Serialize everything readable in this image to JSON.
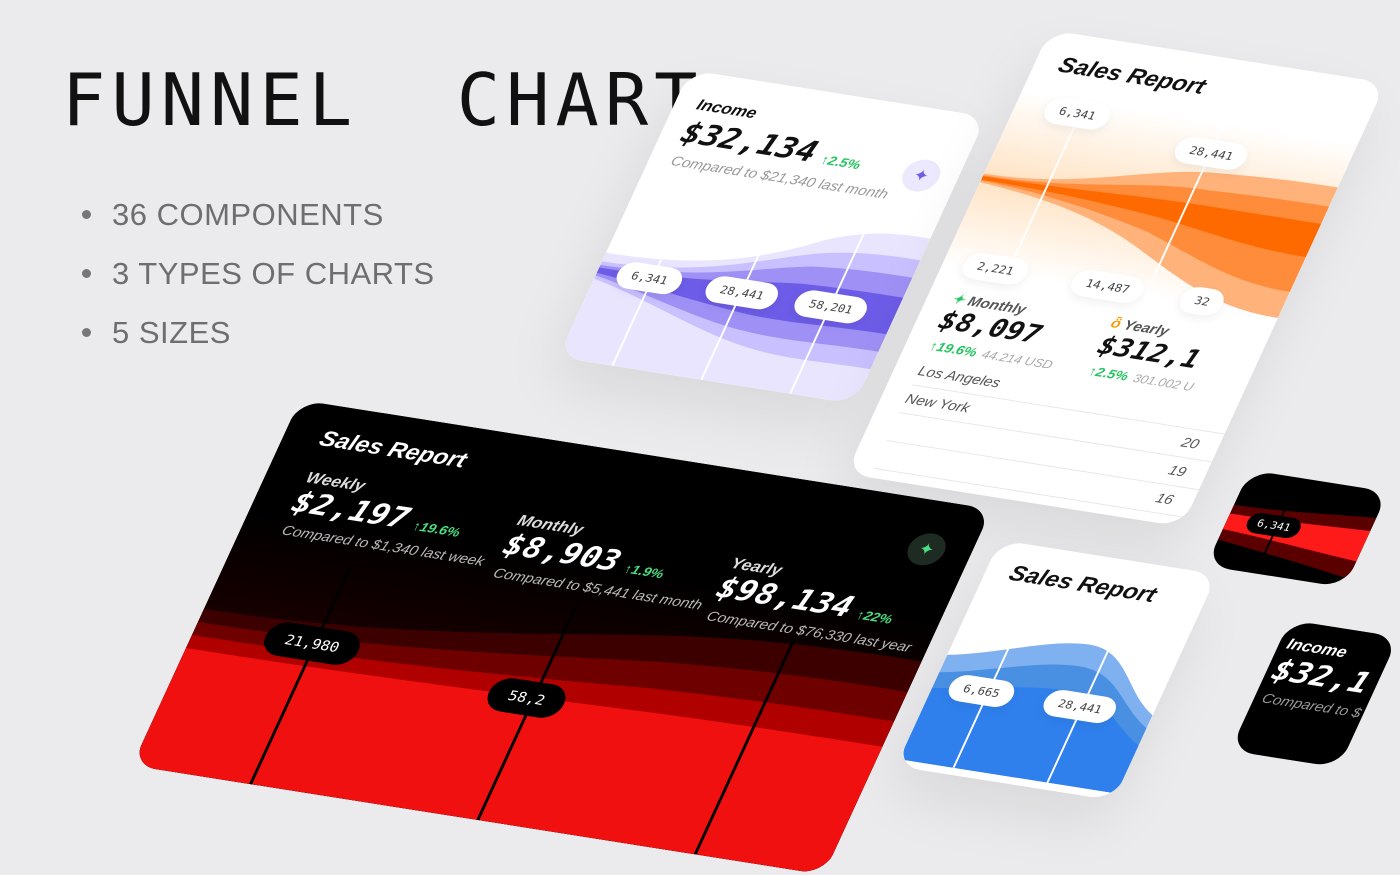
{
  "headline": "FUNNEL  CHART",
  "bullets": [
    "36 COMPONENTS",
    "3 TYPES OF CHARTS",
    "5 SIZES"
  ],
  "colors": {
    "purple": "#6c5ce7",
    "orange": "#ff6a00",
    "red": "#ff1a1a",
    "blue": "#2f80ed",
    "green": "#22c55e",
    "background": "#ebebed"
  },
  "income_card": {
    "title": "Income",
    "amount": "$32,134",
    "change": "↑2.5%",
    "compared": "Compared to $21,340 last month",
    "icon": "sparkle-icon",
    "labels": [
      "6,341",
      "28,441",
      "58,201"
    ]
  },
  "sales_card": {
    "title": "Sales Report",
    "labels": [
      "6,341",
      "28,441",
      "2,221",
      "14,487",
      "32"
    ],
    "monthly": {
      "label": "Monthly",
      "icon": "sparkle-icon",
      "amount": "$8,097",
      "change": "↑19.6%",
      "sub": "44.214 USD"
    },
    "yearly": {
      "label": "Yearly",
      "icon": "medal-icon",
      "amount": "$312,1",
      "change": "↑2.5%",
      "sub": "301.002 U"
    },
    "rows": [
      {
        "city": "Los Angeles",
        "value": ""
      },
      {
        "city": "New York",
        "value": "20"
      },
      {
        "city": "",
        "value": "19"
      },
      {
        "city": "",
        "value": "16"
      }
    ]
  },
  "dark_card": {
    "title": "Sales Report",
    "icon": "sparkle-icon",
    "stats": [
      {
        "label": "Weekly",
        "amount": "$2,197",
        "change": "↑19.6%",
        "compared": "Compared to $1,340 last week"
      },
      {
        "label": "Monthly",
        "amount": "$8,903",
        "change": "↑1.9%",
        "compared": "Compared to $5,441 last month"
      },
      {
        "label": "Yearly",
        "amount": "$98,134",
        "change": "↑22%",
        "compared": "Compared to $76,330 last year"
      }
    ],
    "labels": [
      "21,980",
      "58,2"
    ]
  },
  "blue_card": {
    "title": "Sales Report",
    "labels": [
      "6,665",
      "28,441"
    ]
  },
  "dark_income_card": {
    "title": "Income",
    "amount": "$32,1",
    "compared": "Compared to $"
  },
  "red_card": {
    "labels": [
      "6,341"
    ]
  }
}
